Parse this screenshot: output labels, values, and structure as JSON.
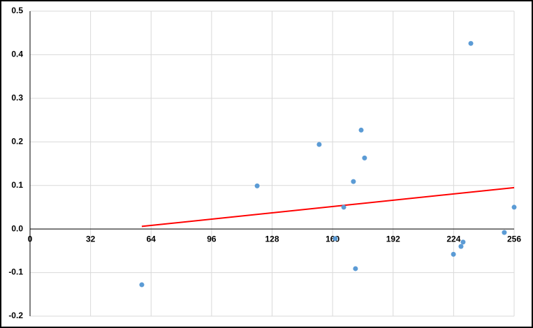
{
  "chart_data": {
    "type": "scatter",
    "series": [
      {
        "color": "#5b9bd5",
        "x": [
          59.1,
          120.1,
          152.9,
          161.4,
          165.9,
          171.0,
          172.1,
          175.1,
          176.9,
          223.9,
          227.9,
          229.0,
          233.1,
          250.8,
          256
        ],
        "values": [
          -0.128,
          0.099,
          0.194,
          -0.022,
          0.05,
          0.109,
          -0.091,
          0.227,
          0.163,
          -0.058,
          -0.04,
          -0.03,
          0.426,
          -0.008,
          0.05
        ]
      }
    ],
    "trendline": {
      "color": "#ff0000",
      "x": [
        59.1,
        256
      ],
      "values": [
        0.006,
        0.095
      ]
    },
    "xlim": [
      0,
      256
    ],
    "xticks": [
      0,
      32,
      64,
      96,
      128,
      160,
      192,
      224,
      256
    ],
    "ylim": [
      -0.2,
      0.5
    ],
    "yticks": [
      {
        "value": -0.2,
        "label": "-0.2"
      },
      {
        "value": -0.1,
        "label": "-0.1"
      },
      {
        "value": 0,
        "label": "0.0"
      },
      0.1,
      0.2,
      0.3,
      0.4,
      0.5
    ],
    "grid": true
  }
}
